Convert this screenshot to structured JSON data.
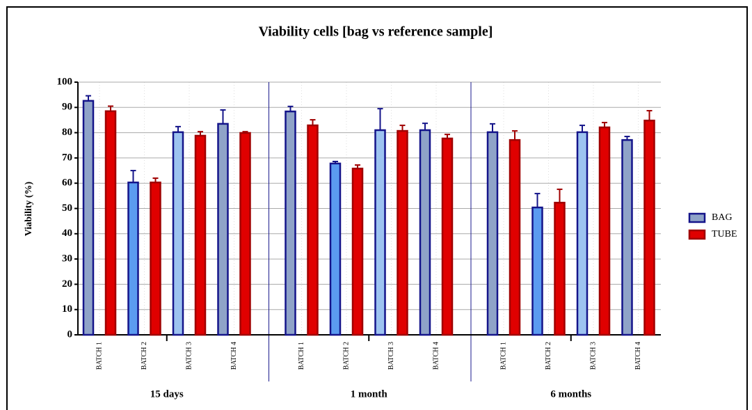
{
  "chart_data": {
    "type": "bar",
    "title": "Viability  cells [bag vs reference sample]",
    "y_label": "Viability (%)",
    "groups": [
      "15 days",
      "1 month",
      "6 months"
    ],
    "categories": [
      "BATCH 1",
      "BATCH 2",
      "BATCH 3",
      "BATCH 4",
      "BATCH 1",
      "BATCH 2",
      "BATCH 3",
      "BATCH 4",
      "BATCH 1",
      "BATCH 2",
      "BATCH 3",
      "BATCH 4"
    ],
    "series": [
      {
        "name": "BAG",
        "color": "#8fa3c8",
        "edge": "#14148a",
        "colors": [
          "#8fa3c8",
          "#5b9bf0",
          "#9dc3f0",
          "#8fa3c8",
          "#8fa3c8",
          "#5b9bf0",
          "#9dc3f0",
          "#8fa3c8",
          "#8fa3c8",
          "#5b9bf0",
          "#9dc3f0",
          "#8fa3c8"
        ],
        "values": [
          92.6,
          60.3,
          80.2,
          83.5,
          88.4,
          67.8,
          81,
          81,
          80.2,
          50.4,
          80.2,
          77.1
        ],
        "errors": [
          2,
          4.7,
          2.2,
          5.5,
          2,
          0.8,
          8.5,
          2.7,
          3.3,
          5.5,
          2.7,
          1.4
        ]
      },
      {
        "name": "TUBE",
        "color": "#e00000",
        "edge": "#a00000",
        "values": [
          88.5,
          60.3,
          78.8,
          79.9,
          82.9,
          65.8,
          80.7,
          77.7,
          77.1,
          52.3,
          82.1,
          84.8
        ],
        "errors": [
          2,
          1.7,
          1.6,
          0.5,
          2.2,
          1.4,
          2.2,
          1.6,
          3.6,
          5.3,
          1.9,
          3.9
        ]
      }
    ],
    "ylim": [
      0,
      100
    ],
    "yticks": [
      0,
      10,
      20,
      30,
      40,
      50,
      60,
      70,
      80,
      90,
      100
    ],
    "grid": true,
    "legend": "right"
  }
}
